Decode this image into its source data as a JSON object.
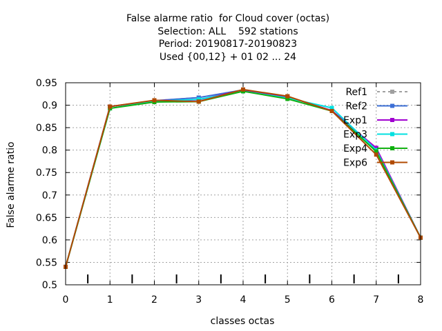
{
  "chart_data": {
    "type": "line",
    "title_lines": [
      "False alarme ratio  for Cloud cover (octas)",
      "Selection: ALL    592 stations",
      "Period: 20190817-20190823",
      "Used {00,12} + 01 02 ... 24"
    ],
    "xlabel": "classes octas",
    "ylabel": "False alarme ratio",
    "xlim": [
      0,
      8
    ],
    "ylim": [
      0.5,
      0.95
    ],
    "x_ticks": [
      0,
      1,
      2,
      3,
      4,
      5,
      6,
      7,
      8
    ],
    "y_ticks": [
      0.5,
      0.55,
      0.6,
      0.65,
      0.7,
      0.75,
      0.8,
      0.85,
      0.9,
      0.95
    ],
    "grid": true,
    "legend_position": "top-right",
    "x": [
      0,
      1,
      2,
      3,
      4,
      5,
      6,
      7,
      8
    ],
    "series": [
      {
        "name": "Ref1",
        "color": "#a0a0a0",
        "dashed": true,
        "values": [
          0.54,
          0.897,
          0.91,
          0.917,
          0.934,
          0.919,
          0.888,
          0.803,
          0.605
        ]
      },
      {
        "name": "Ref2",
        "color": "#3c6fd6",
        "dashed": false,
        "values": [
          0.54,
          0.897,
          0.91,
          0.917,
          0.934,
          0.919,
          0.888,
          0.803,
          0.605
        ]
      },
      {
        "name": "Exp1",
        "color": "#a000d0",
        "dashed": false,
        "values": [
          0.54,
          0.897,
          0.91,
          0.912,
          0.934,
          0.919,
          0.888,
          0.805,
          0.605
        ]
      },
      {
        "name": "Exp3",
        "color": "#00e0e0",
        "dashed": false,
        "values": [
          0.54,
          0.893,
          0.909,
          0.913,
          0.931,
          0.916,
          0.894,
          0.8,
          0.605
        ]
      },
      {
        "name": "Exp4",
        "color": "#10b010",
        "dashed": false,
        "values": [
          0.54,
          0.893,
          0.907,
          0.908,
          0.931,
          0.914,
          0.887,
          0.797,
          0.605
        ]
      },
      {
        "name": "Exp6",
        "color": "#b04a00",
        "dashed": false,
        "values": [
          0.54,
          0.897,
          0.911,
          0.908,
          0.935,
          0.92,
          0.887,
          0.79,
          0.605
        ]
      }
    ],
    "bottom_markers_x": [
      0.5,
      1.5,
      2.5,
      3.5,
      4.5,
      5.5,
      6.5,
      7.5
    ]
  }
}
